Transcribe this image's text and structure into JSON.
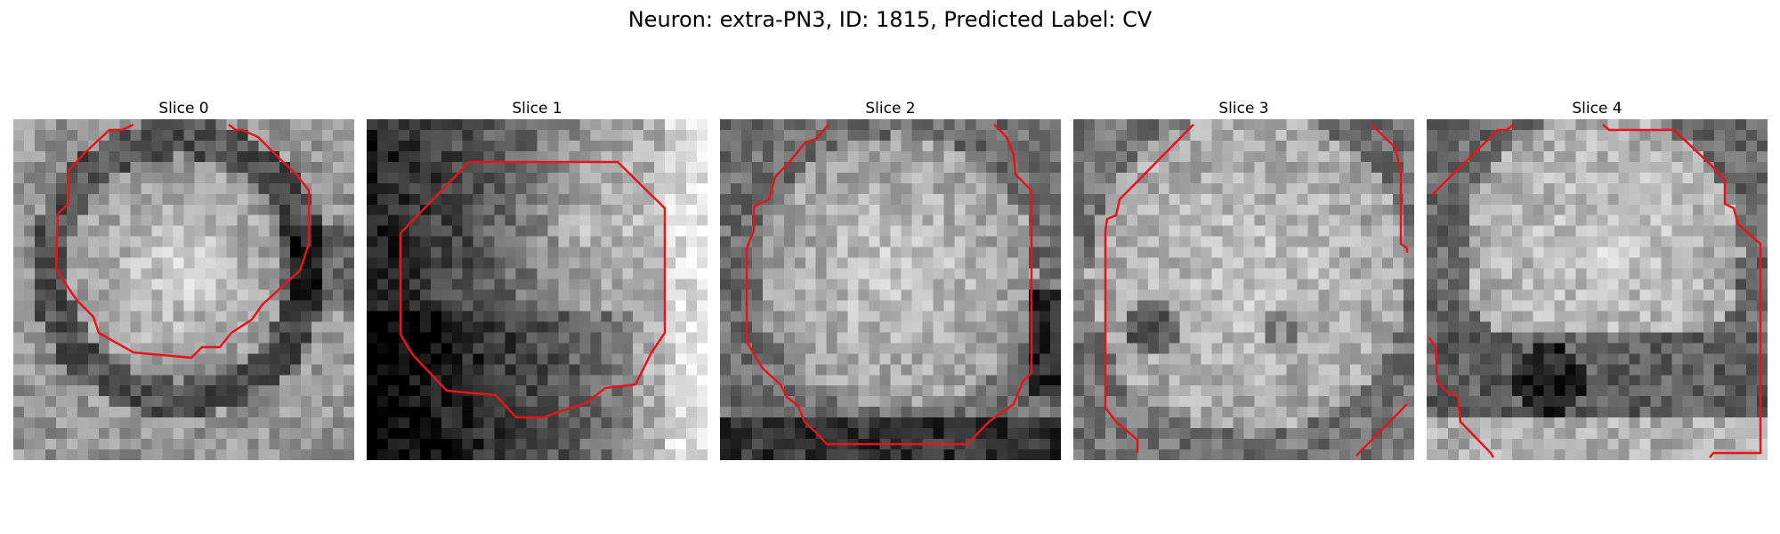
{
  "suptitle": "Neuron: extra-PN3, ID: 1815, Predicted Label: CV",
  "panels": [
    {
      "title": "Slice 0"
    },
    {
      "title": "Slice 1"
    },
    {
      "title": "Slice 2"
    },
    {
      "title": "Slice 3"
    },
    {
      "title": "Slice 4"
    }
  ],
  "colors": {
    "contour": "#e8141b",
    "background": "#ffffff"
  }
}
